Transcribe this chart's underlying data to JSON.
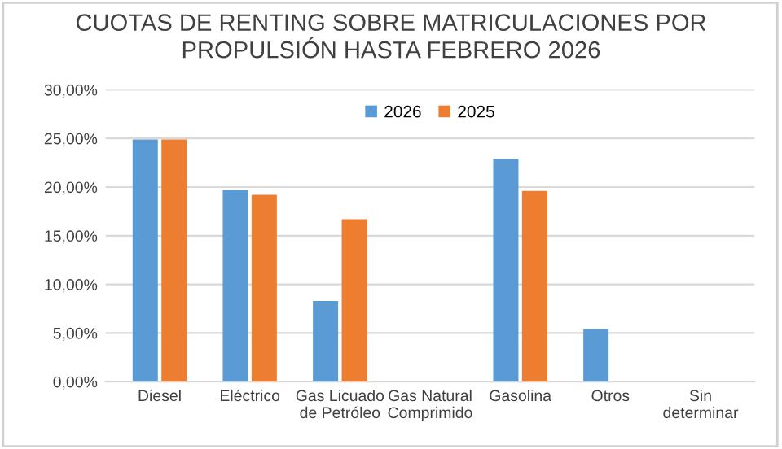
{
  "chart_data": {
    "type": "bar",
    "title": "CUOTAS DE RENTING SOBRE MATRICULACIONES POR\nPROPULSIÓN HASTA FEBRERO 2026",
    "categories": [
      "Diesel",
      "Eléctrico",
      "Gas Licuado\nde Petróleo",
      "Gas Natural\nComprimido",
      "Gasolina",
      "Otros",
      "Sin\ndeterminar"
    ],
    "series": [
      {
        "name": "2026",
        "color": "#5b9bd5",
        "values": [
          24.9,
          19.7,
          8.3,
          0,
          22.9,
          5.4,
          0
        ]
      },
      {
        "name": "2025",
        "color": "#ed7d31",
        "values": [
          24.9,
          19.2,
          16.7,
          0,
          19.6,
          0,
          0
        ]
      }
    ],
    "ylim": [
      0,
      30
    ],
    "yticks": [
      {
        "value": 0,
        "label": "0,00%"
      },
      {
        "value": 5,
        "label": "5,00%"
      },
      {
        "value": 10,
        "label": "10,00%"
      },
      {
        "value": 15,
        "label": "15,00%"
      },
      {
        "value": 20,
        "label": "20,00%"
      },
      {
        "value": 25,
        "label": "25,00%"
      },
      {
        "value": 30,
        "label": "30,00%"
      }
    ],
    "grid": "y",
    "legend": "top"
  }
}
